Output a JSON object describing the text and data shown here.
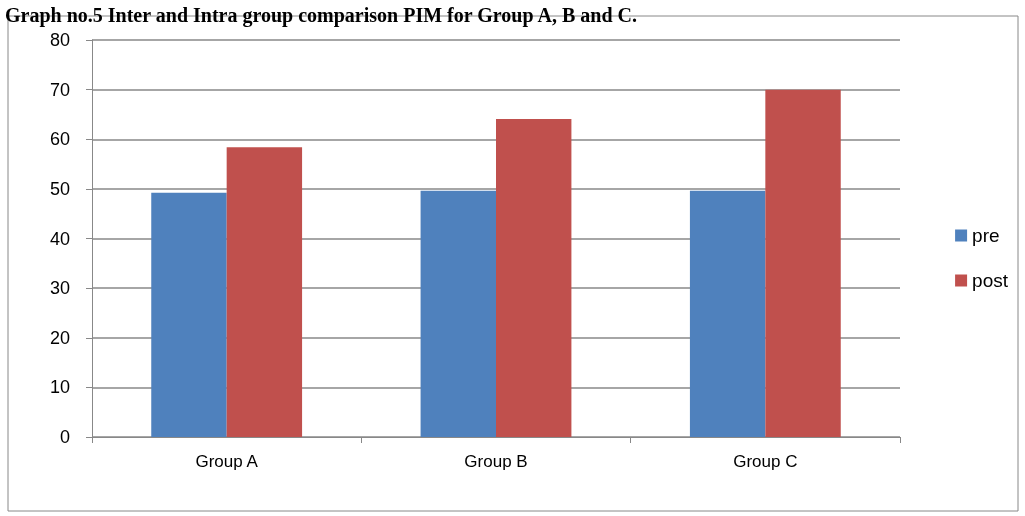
{
  "chart_data": {
    "type": "bar",
    "title": "Graph no.5 Inter and Intra group comparison PIM for Group A, B and C.",
    "categories": [
      "Group A",
      "Group B",
      "Group C"
    ],
    "series": [
      {
        "name": "pre",
        "color": "#4f81bd",
        "values": [
          49.2,
          49.6,
          49.6
        ]
      },
      {
        "name": "post",
        "color": "#c0504d",
        "values": [
          58.4,
          64.1,
          70
        ]
      }
    ],
    "ylim": [
      0,
      80
    ],
    "yticks": [
      0,
      10,
      20,
      30,
      40,
      50,
      60,
      70,
      80
    ],
    "grid": "y",
    "legend": "right"
  }
}
